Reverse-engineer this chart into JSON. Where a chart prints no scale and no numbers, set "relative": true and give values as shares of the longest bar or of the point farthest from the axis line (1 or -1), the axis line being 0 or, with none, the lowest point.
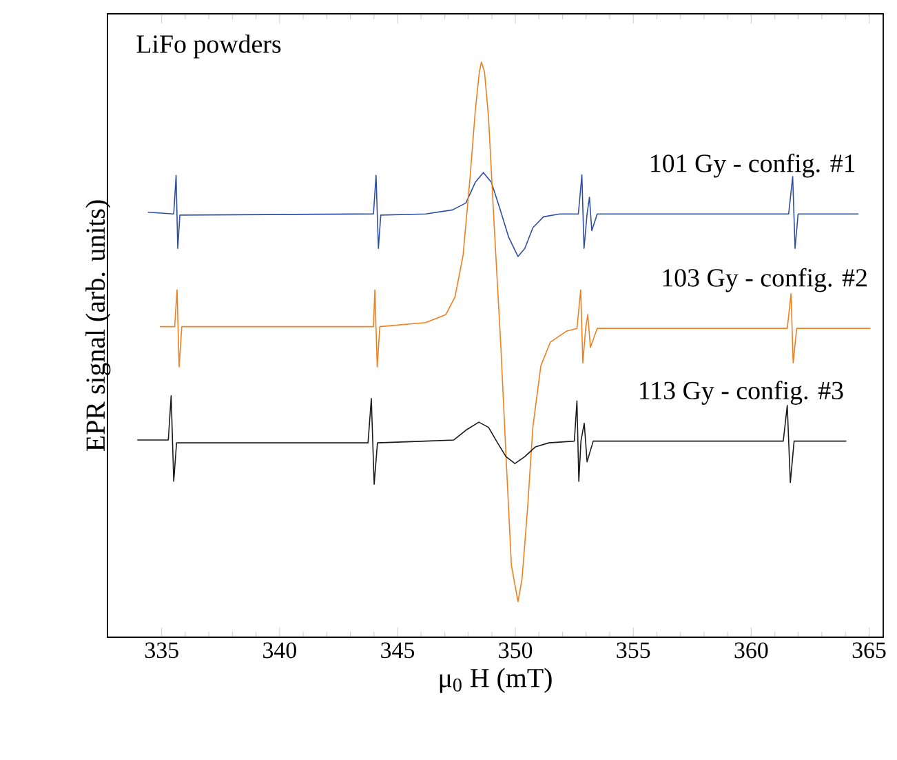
{
  "chart_data": {
    "type": "line",
    "relative": true,
    "xlabel": "μ$_{0}$ H (mT)",
    "ylabel": "EPR signal (arb. units)",
    "annotations": [
      "LiFo powders"
    ],
    "xlim": [
      332.7,
      365.6
    ],
    "xticks": [
      335,
      340,
      345,
      350,
      355,
      360,
      365
    ],
    "legend": false,
    "grid": false,
    "marker": "none",
    "line_style": "solid",
    "series": [
      {
        "name": "101 Gy - config. #1",
        "color": "#2e4ea3",
        "x": [
          334.43,
          335.51,
          335.61,
          335.68,
          335.77,
          343.98,
          344.09,
          344.19,
          344.29,
          346.19,
          347.33,
          347.9,
          348.3,
          348.64,
          348.98,
          349.32,
          349.72,
          350.11,
          350.4,
          350.74,
          351.19,
          351.88,
          352.67,
          352.82,
          352.91,
          353.04,
          353.14,
          353.24,
          353.47,
          361.59,
          361.76,
          361.86,
          361.99,
          364.53
        ],
        "values": [
          0.739,
          0.736,
          0.803,
          0.676,
          0.734,
          0.736,
          0.803,
          0.676,
          0.734,
          0.736,
          0.743,
          0.755,
          0.791,
          0.808,
          0.791,
          0.748,
          0.695,
          0.662,
          0.676,
          0.712,
          0.731,
          0.736,
          0.736,
          0.804,
          0.676,
          0.736,
          0.765,
          0.707,
          0.736,
          0.736,
          0.801,
          0.676,
          0.736,
          0.736
        ]
      },
      {
        "name": "103 Gy - config. #2",
        "color": "#f07f1e",
        "x": [
          334.94,
          335.55,
          335.65,
          335.74,
          335.85,
          343.98,
          344.04,
          344.14,
          344.25,
          346.19,
          347.05,
          347.44,
          347.78,
          348.07,
          348.3,
          348.47,
          348.56,
          348.69,
          348.86,
          349.09,
          349.38,
          349.6,
          349.83,
          350.11,
          350.28,
          350.51,
          350.74,
          351.08,
          351.48,
          352.16,
          352.61,
          352.77,
          352.86,
          352.98,
          353.07,
          353.18,
          353.47,
          361.53,
          361.69,
          361.78,
          361.93,
          365.04
        ],
        "values": [
          0.54,
          0.54,
          0.604,
          0.47,
          0.54,
          0.54,
          0.604,
          0.47,
          0.54,
          0.547,
          0.561,
          0.592,
          0.664,
          0.796,
          0.916,
          0.983,
          1,
          0.983,
          0.904,
          0.724,
          0.508,
          0.317,
          0.125,
          0.062,
          0.101,
          0.221,
          0.365,
          0.472,
          0.513,
          0.532,
          0.537,
          0.604,
          0.477,
          0.537,
          0.561,
          0.504,
          0.537,
          0.537,
          0.597,
          0.477,
          0.537,
          0.537
        ]
      },
      {
        "name": "113 Gy - config. #3",
        "color": "#1a1a1a",
        "x": [
          333.98,
          335.28,
          335.4,
          335.51,
          335.63,
          343.75,
          343.89,
          344.01,
          344.15,
          346.19,
          347.39,
          347.9,
          348.45,
          348.86,
          349.2,
          349.6,
          349.98,
          350.4,
          350.85,
          351.42,
          352.5,
          352.61,
          352.69,
          352.78,
          352.92,
          353.04,
          353.3,
          361.36,
          361.53,
          361.66,
          361.82,
          364.02
        ],
        "values": [
          0.343,
          0.343,
          0.42,
          0.271,
          0.338,
          0.338,
          0.415,
          0.266,
          0.338,
          0.341,
          0.343,
          0.36,
          0.374,
          0.365,
          0.341,
          0.314,
          0.302,
          0.314,
          0.331,
          0.338,
          0.341,
          0.411,
          0.271,
          0.341,
          0.372,
          0.305,
          0.341,
          0.341,
          0.403,
          0.269,
          0.341,
          0.341
        ]
      }
    ]
  }
}
